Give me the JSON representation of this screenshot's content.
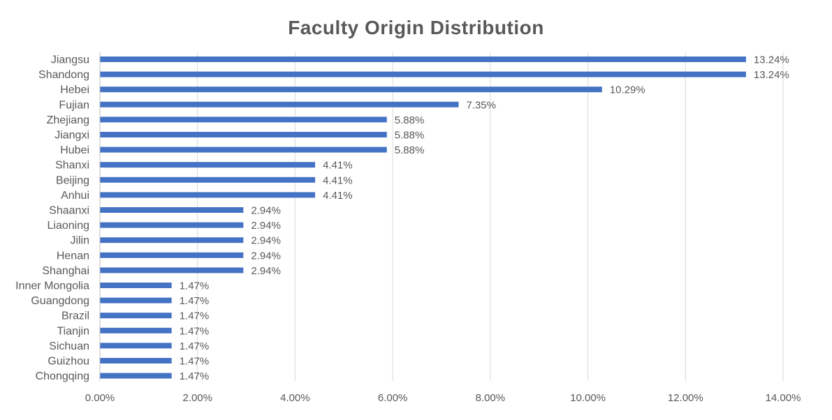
{
  "chart_data": {
    "type": "bar",
    "orientation": "horizontal",
    "title": "Faculty Origin Distribution",
    "xlabel": "",
    "ylabel": "",
    "xlim": [
      0,
      14
    ],
    "x_ticks": [
      0,
      2,
      4,
      6,
      8,
      10,
      12,
      14
    ],
    "x_tick_labels": [
      "0.00%",
      "2.00%",
      "4.00%",
      "6.00%",
      "8.00%",
      "10.00%",
      "12.00%",
      "14.00%"
    ],
    "grid": true,
    "legend": "none",
    "bar_color": "#4472C4",
    "categories": [
      "Jiangsu",
      "Shandong",
      "Hebei",
      "Fujian",
      "Zhejiang",
      "Jiangxi",
      "Hubei",
      "Shanxi",
      "Beijing",
      "Anhui",
      "Shaanxi",
      "Liaoning",
      "Jilin",
      "Henan",
      "Shanghai",
      "Inner Mongolia",
      "Guangdong",
      "Brazil",
      "Tianjin",
      "Sichuan",
      "Guizhou",
      "Chongqing"
    ],
    "values": [
      13.24,
      13.24,
      10.29,
      7.35,
      5.88,
      5.88,
      5.88,
      4.41,
      4.41,
      4.41,
      2.94,
      2.94,
      2.94,
      2.94,
      2.94,
      1.47,
      1.47,
      1.47,
      1.47,
      1.47,
      1.47,
      1.47
    ],
    "data_labels": [
      "13.24%",
      "13.24%",
      "10.29%",
      "7.35%",
      "5.88%",
      "5.88%",
      "5.88%",
      "4.41%",
      "4.41%",
      "4.41%",
      "2.94%",
      "2.94%",
      "2.94%",
      "2.94%",
      "2.94%",
      "1.47%",
      "1.47%",
      "1.47%",
      "1.47%",
      "1.47%",
      "1.47%",
      "1.47%"
    ]
  }
}
